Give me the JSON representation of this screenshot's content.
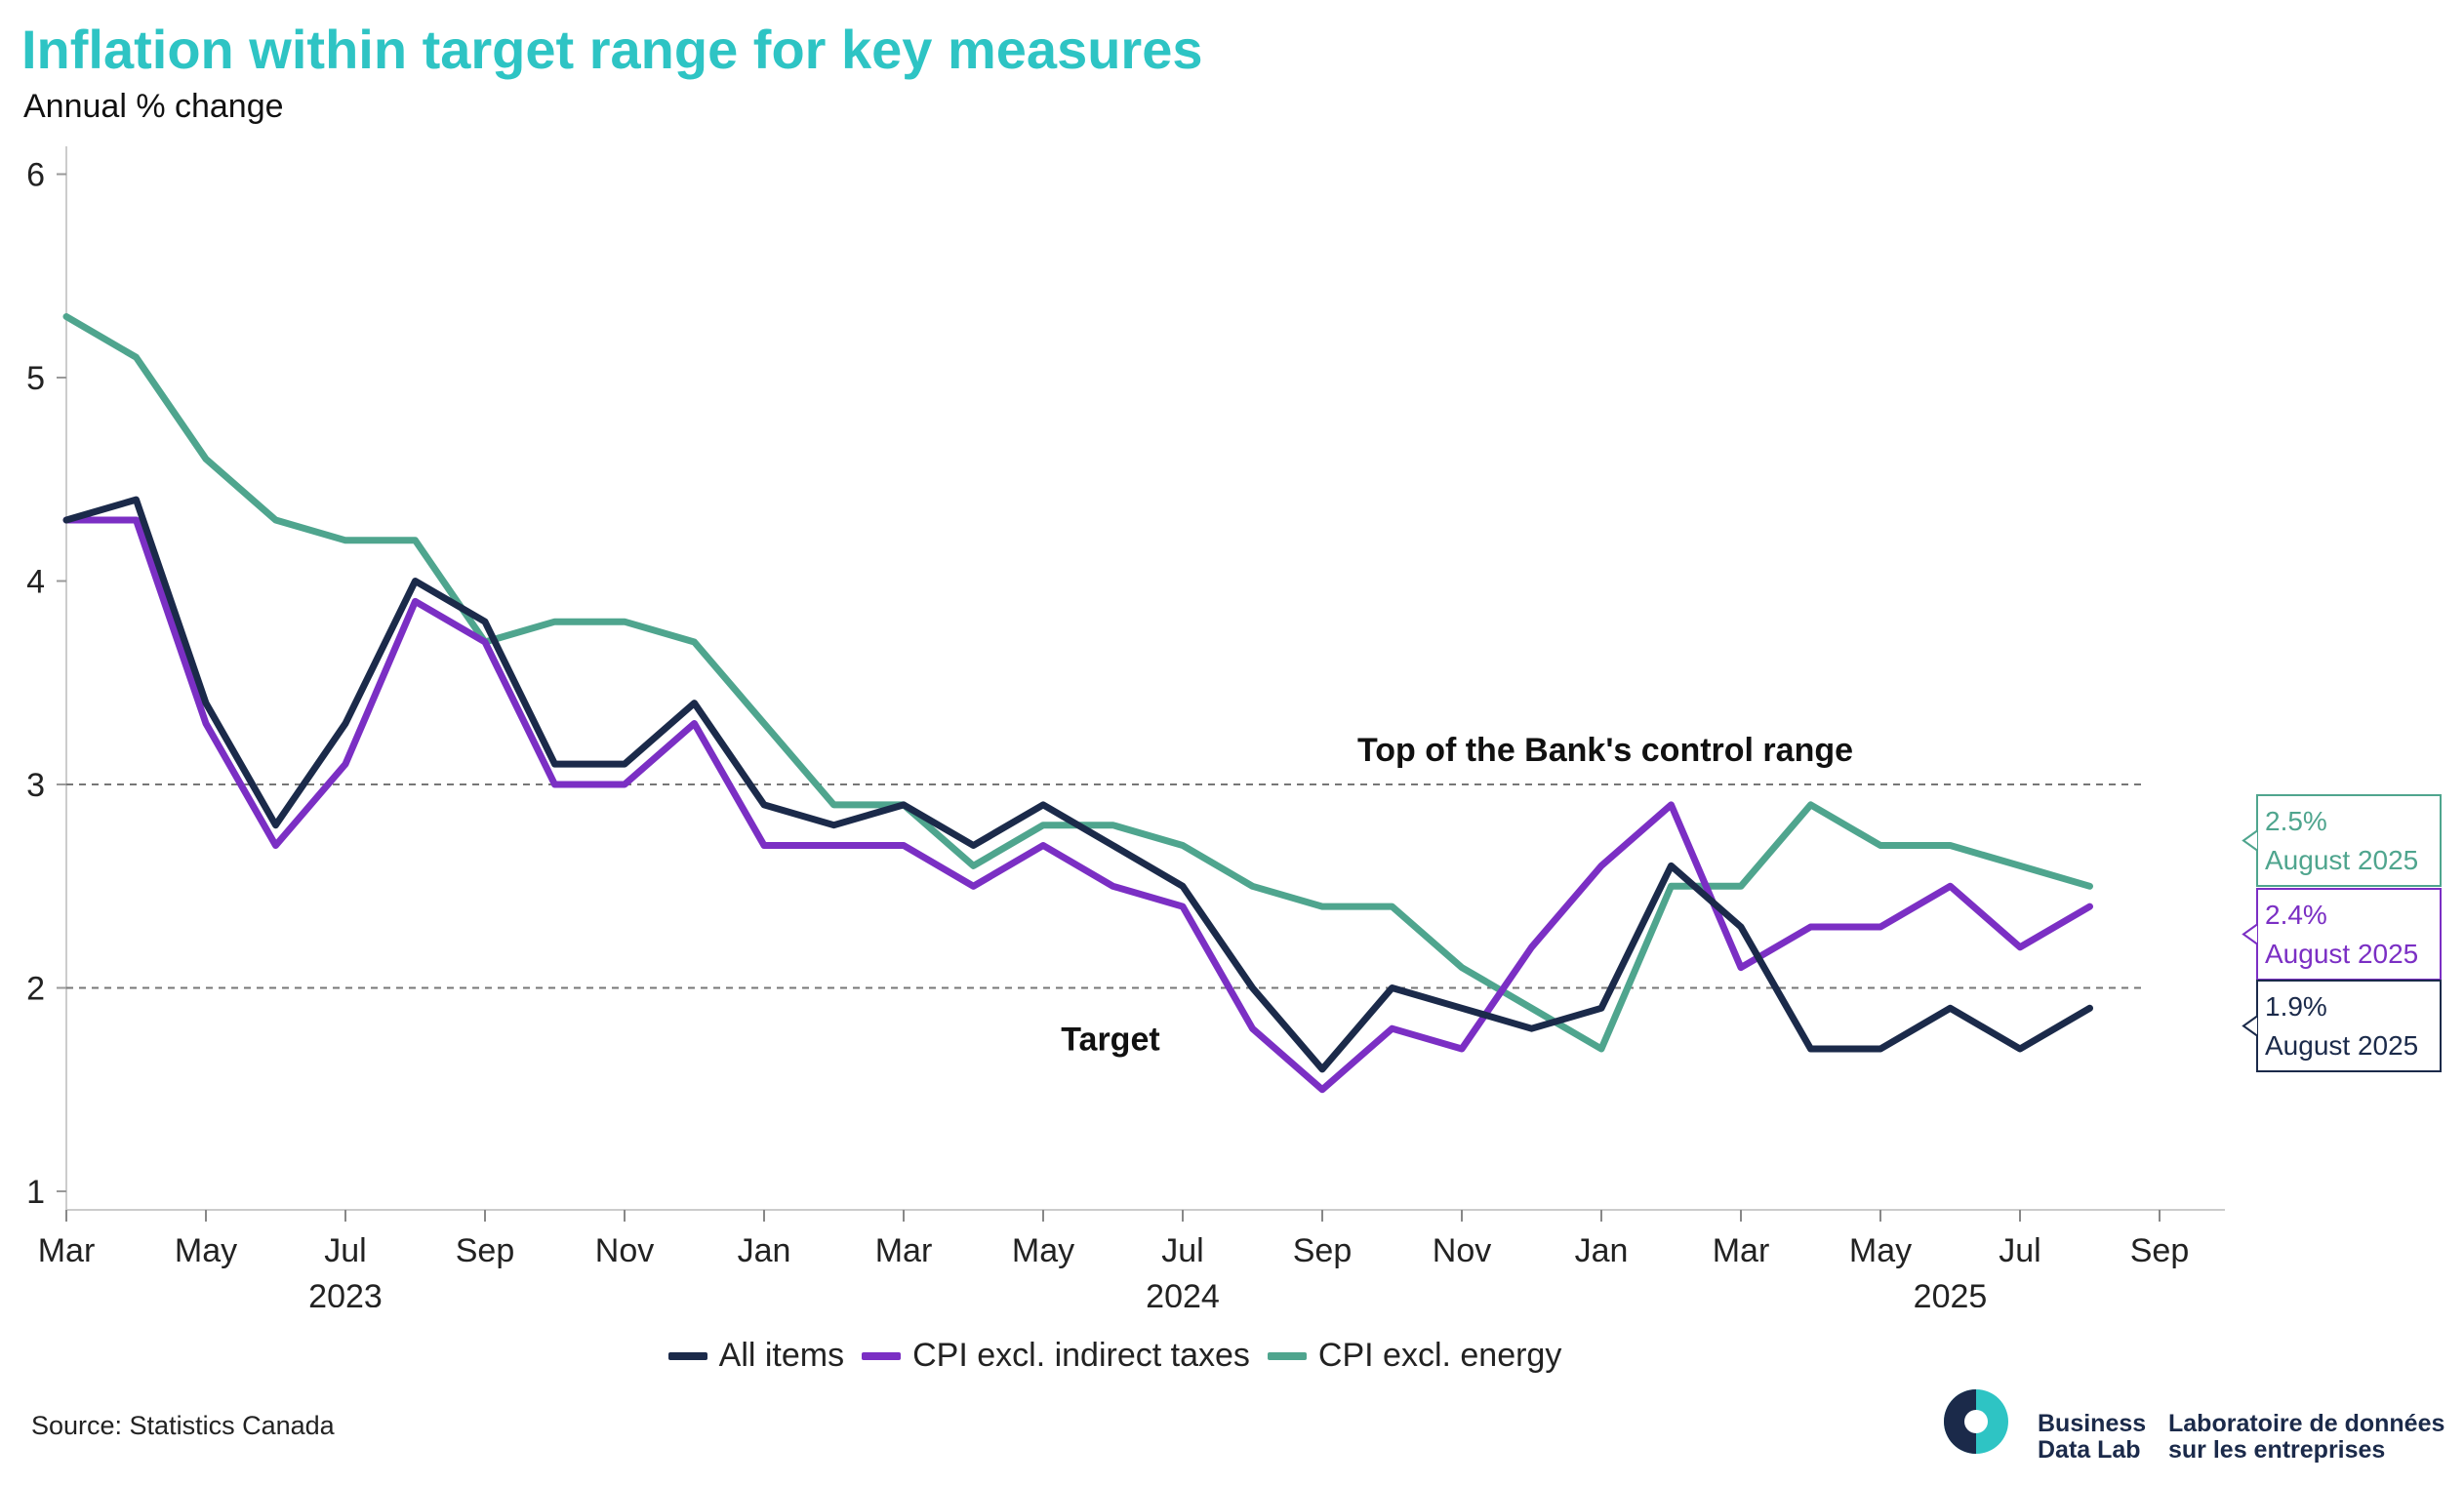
{
  "title": "Inflation within target range for key measures",
  "subtitle": "Annual % change",
  "source": "Source: Statistics Canada",
  "logo": {
    "en_line1": "Business",
    "en_line2": "Data Lab",
    "fr_line1": "Laboratoire de données",
    "fr_line2": "sur les entreprises",
    "colors": {
      "navy": "#1b2a4a",
      "teal": "#2ec4c4"
    }
  },
  "chart_data": {
    "type": "line",
    "x": [
      "2023-03",
      "2023-04",
      "2023-05",
      "2023-06",
      "2023-07",
      "2023-08",
      "2023-09",
      "2023-10",
      "2023-11",
      "2023-12",
      "2024-01",
      "2024-02",
      "2024-03",
      "2024-04",
      "2024-05",
      "2024-06",
      "2024-07",
      "2024-08",
      "2024-09",
      "2024-10",
      "2024-11",
      "2024-12",
      "2025-01",
      "2025-02",
      "2025-03",
      "2025-04",
      "2025-05",
      "2025-06",
      "2025-07",
      "2025-08"
    ],
    "ylim": [
      1,
      6
    ],
    "y_ticks": [
      "1",
      "2",
      "3",
      "4",
      "5",
      "6"
    ],
    "x_ticks": [
      "Mar",
      "May",
      "Jul",
      "Sep",
      "Nov",
      "Jan",
      "Mar",
      "May",
      "Jul",
      "Sep",
      "Nov",
      "Jan",
      "Mar",
      "May",
      "Jul",
      "Sep"
    ],
    "x_tick_months": [
      "2023-03",
      "2023-05",
      "2023-07",
      "2023-09",
      "2023-11",
      "2024-01",
      "2024-03",
      "2024-05",
      "2024-07",
      "2024-09",
      "2024-11",
      "2025-01",
      "2025-03",
      "2025-05",
      "2025-07",
      "2025-09"
    ],
    "year_labels": [
      {
        "label": "2023",
        "month": "2023-07"
      },
      {
        "label": "2024",
        "month": "2024-07"
      },
      {
        "label": "2025",
        "month": "2025-06"
      }
    ],
    "series": [
      {
        "name": "All items",
        "color": "#1b2a4a",
        "values": [
          4.3,
          4.4,
          3.4,
          2.8,
          3.3,
          4.0,
          3.8,
          3.1,
          3.1,
          3.4,
          2.9,
          2.8,
          2.9,
          2.7,
          2.9,
          2.7,
          2.5,
          2.0,
          1.6,
          2.0,
          1.9,
          1.8,
          1.9,
          2.6,
          2.3,
          1.7,
          1.7,
          1.9,
          1.7,
          1.9
        ]
      },
      {
        "name": "CPI excl. indirect taxes",
        "color": "#7b2fc4",
        "values": [
          4.3,
          4.3,
          3.3,
          2.7,
          3.1,
          3.9,
          3.7,
          3.0,
          3.0,
          3.3,
          2.7,
          2.7,
          2.7,
          2.5,
          2.7,
          2.5,
          2.4,
          1.8,
          1.5,
          1.8,
          1.7,
          2.2,
          2.6,
          2.9,
          2.1,
          2.3,
          2.3,
          2.5,
          2.2,
          2.4
        ]
      },
      {
        "name": "CPI excl. energy",
        "color": "#4fa58e",
        "values": [
          5.3,
          5.1,
          4.6,
          4.3,
          4.2,
          4.2,
          3.7,
          3.8,
          3.8,
          3.7,
          3.3,
          2.9,
          2.9,
          2.6,
          2.8,
          2.8,
          2.7,
          2.5,
          2.4,
          2.4,
          2.1,
          1.9,
          1.7,
          2.5,
          2.5,
          2.9,
          2.7,
          2.7,
          2.6,
          2.5
        ]
      }
    ],
    "reference_lines": [
      {
        "value": 3,
        "label": "Top of the Bank's control range"
      },
      {
        "value": 2,
        "label": "Target"
      }
    ],
    "end_callouts": [
      {
        "series": "CPI excl. energy",
        "value_text": "2.5%",
        "date_text": "August 2025"
      },
      {
        "series": "CPI excl. indirect taxes",
        "value_text": "2.4%",
        "date_text": "August 2025"
      },
      {
        "series": "All items",
        "value_text": "1.9%",
        "date_text": "August 2025"
      }
    ]
  }
}
